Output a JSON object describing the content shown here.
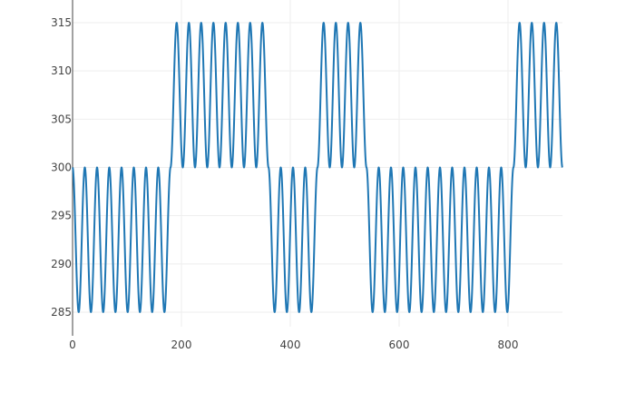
{
  "chart_data": {
    "type": "line",
    "title": "",
    "xlabel": "",
    "ylabel": "",
    "xlim": [
      0,
      900
    ],
    "ylim": [
      283.5,
      316.5
    ],
    "x_ticks": [
      0,
      200,
      400,
      600,
      800
    ],
    "y_ticks": [
      285,
      290,
      295,
      300,
      305,
      310,
      315
    ],
    "x_tick_labels": [
      "0",
      "200",
      "400",
      "600",
      "800"
    ],
    "y_tick_labels": [
      "285",
      "290",
      "295",
      "300",
      "305",
      "310",
      "315"
    ],
    "grid": true,
    "legend": "none",
    "series": [
      {
        "color": "#1f77b4",
        "line_width": 2,
        "oscillation_period": 22.5,
        "amplitude": 15,
        "segments": [
          {
            "x_start": 0,
            "x_end": 180,
            "baseline": 300,
            "direction": "below",
            "min": 285,
            "max": 300
          },
          {
            "x_start": 180,
            "x_end": 360,
            "baseline": 300,
            "direction": "above",
            "min": 300,
            "max": 315
          },
          {
            "x_start": 360,
            "x_end": 450,
            "baseline": 300,
            "direction": "below",
            "min": 285,
            "max": 300
          },
          {
            "x_start": 450,
            "x_end": 540,
            "baseline": 300,
            "direction": "above",
            "min": 300,
            "max": 315
          },
          {
            "x_start": 540,
            "x_end": 810,
            "baseline": 300,
            "direction": "below",
            "min": 285,
            "max": 300
          },
          {
            "x_start": 810,
            "x_end": 900,
            "baseline": 300,
            "direction": "above",
            "min": 300,
            "max": 315
          }
        ]
      }
    ]
  }
}
